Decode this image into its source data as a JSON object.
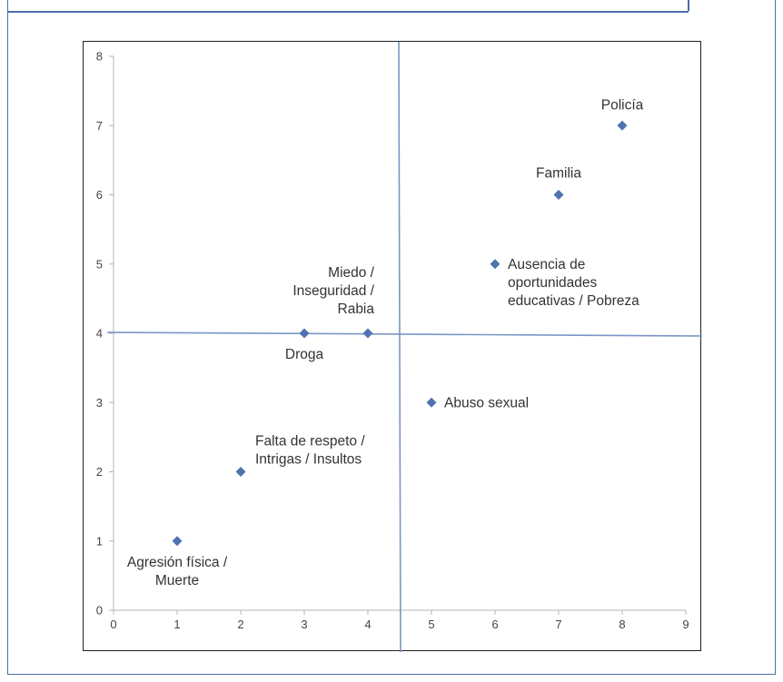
{
  "chart_data": {
    "type": "scatter",
    "title": "",
    "xlabel": "",
    "ylabel": "",
    "xlim": [
      0,
      9
    ],
    "ylim": [
      0,
      8
    ],
    "x_ticks": [
      "0",
      "1",
      "2",
      "3",
      "4",
      "5",
      "6",
      "7",
      "8",
      "9"
    ],
    "y_ticks": [
      "0",
      "1",
      "2",
      "3",
      "4",
      "5",
      "6",
      "7",
      "8"
    ],
    "grid": false,
    "marker_color": "#4f73b0",
    "quadrant_line_color": "#7b95c4",
    "quadrant_lines": {
      "vertical_x": 4.5,
      "horizontal_y": 4.0
    },
    "points": [
      {
        "x": 1,
        "y": 1,
        "label": [
          "Agresión física /",
          "Muerte"
        ]
      },
      {
        "x": 2,
        "y": 2,
        "label": [
          "Falta de respeto /",
          "Intrigas / Insultos"
        ]
      },
      {
        "x": 3,
        "y": 4,
        "label": [
          "Droga"
        ]
      },
      {
        "x": 4,
        "y": 4,
        "label": [
          "Miedo /",
          "Inseguridad /",
          "Rabia"
        ]
      },
      {
        "x": 5,
        "y": 3,
        "label": [
          "Abuso sexual"
        ]
      },
      {
        "x": 6,
        "y": 5,
        "label": [
          "Ausencia de",
          "oportunidades",
          "educativas / Pobreza"
        ]
      },
      {
        "x": 7,
        "y": 6,
        "label": [
          "Familia"
        ]
      },
      {
        "x": 8,
        "y": 7,
        "label": [
          "Policía"
        ]
      }
    ]
  }
}
